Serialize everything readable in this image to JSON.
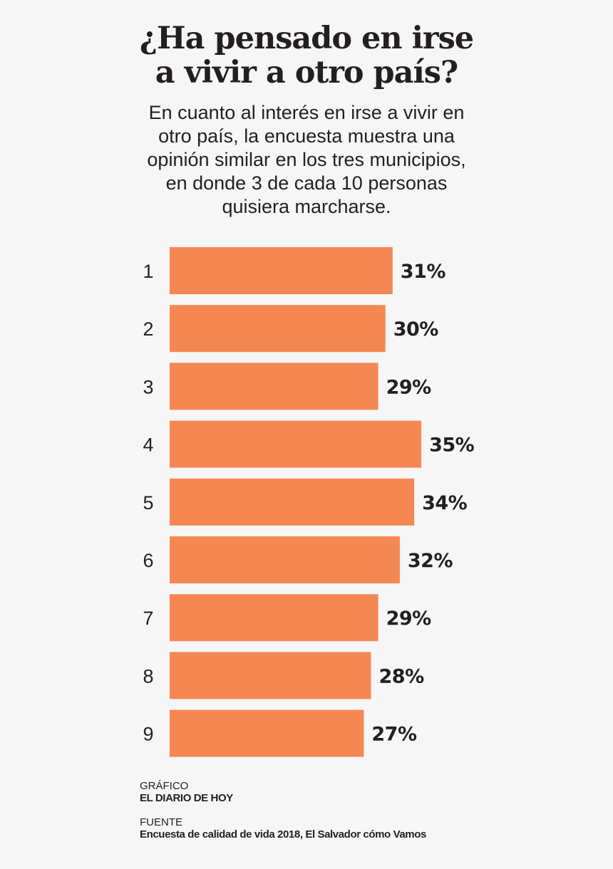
{
  "title": {
    "line1": "¿Ha pensado en irse",
    "line2": "a vivir a otro país?"
  },
  "subtitle": {
    "lines": [
      "En cuanto al interés en irse a vivir en",
      "otro país, la encuesta muestra una",
      "opinión similar en los tres municipios,",
      "en donde 3 de cada 10 personas",
      "quisiera marcharse."
    ]
  },
  "colors": {
    "bar": "#f58752",
    "text": "#231f20",
    "background": "#f6f6f6"
  },
  "chart_data": {
    "type": "bar",
    "orientation": "horizontal",
    "categories": [
      "1",
      "2",
      "3",
      "4",
      "5",
      "6",
      "7",
      "8",
      "9"
    ],
    "values": [
      31,
      30,
      29,
      35,
      34,
      32,
      29,
      28,
      27
    ],
    "value_labels": [
      "31%",
      "30%",
      "29%",
      "35%",
      "34%",
      "32%",
      "29%",
      "28%",
      "27%"
    ],
    "unit": "%",
    "title": "¿Ha pensado en irse a vivir a otro país?",
    "xlabel": "",
    "ylabel": "",
    "xlim": [
      0,
      35
    ],
    "grid": false,
    "legend": "none"
  },
  "credits": {
    "graphic_label": "GRÁFICO",
    "graphic_value": "EL DIARIO DE HOY",
    "source_label": "FUENTE",
    "source_value": "Encuesta de calidad de vida 2018, El Salvador cómo Vamos"
  }
}
